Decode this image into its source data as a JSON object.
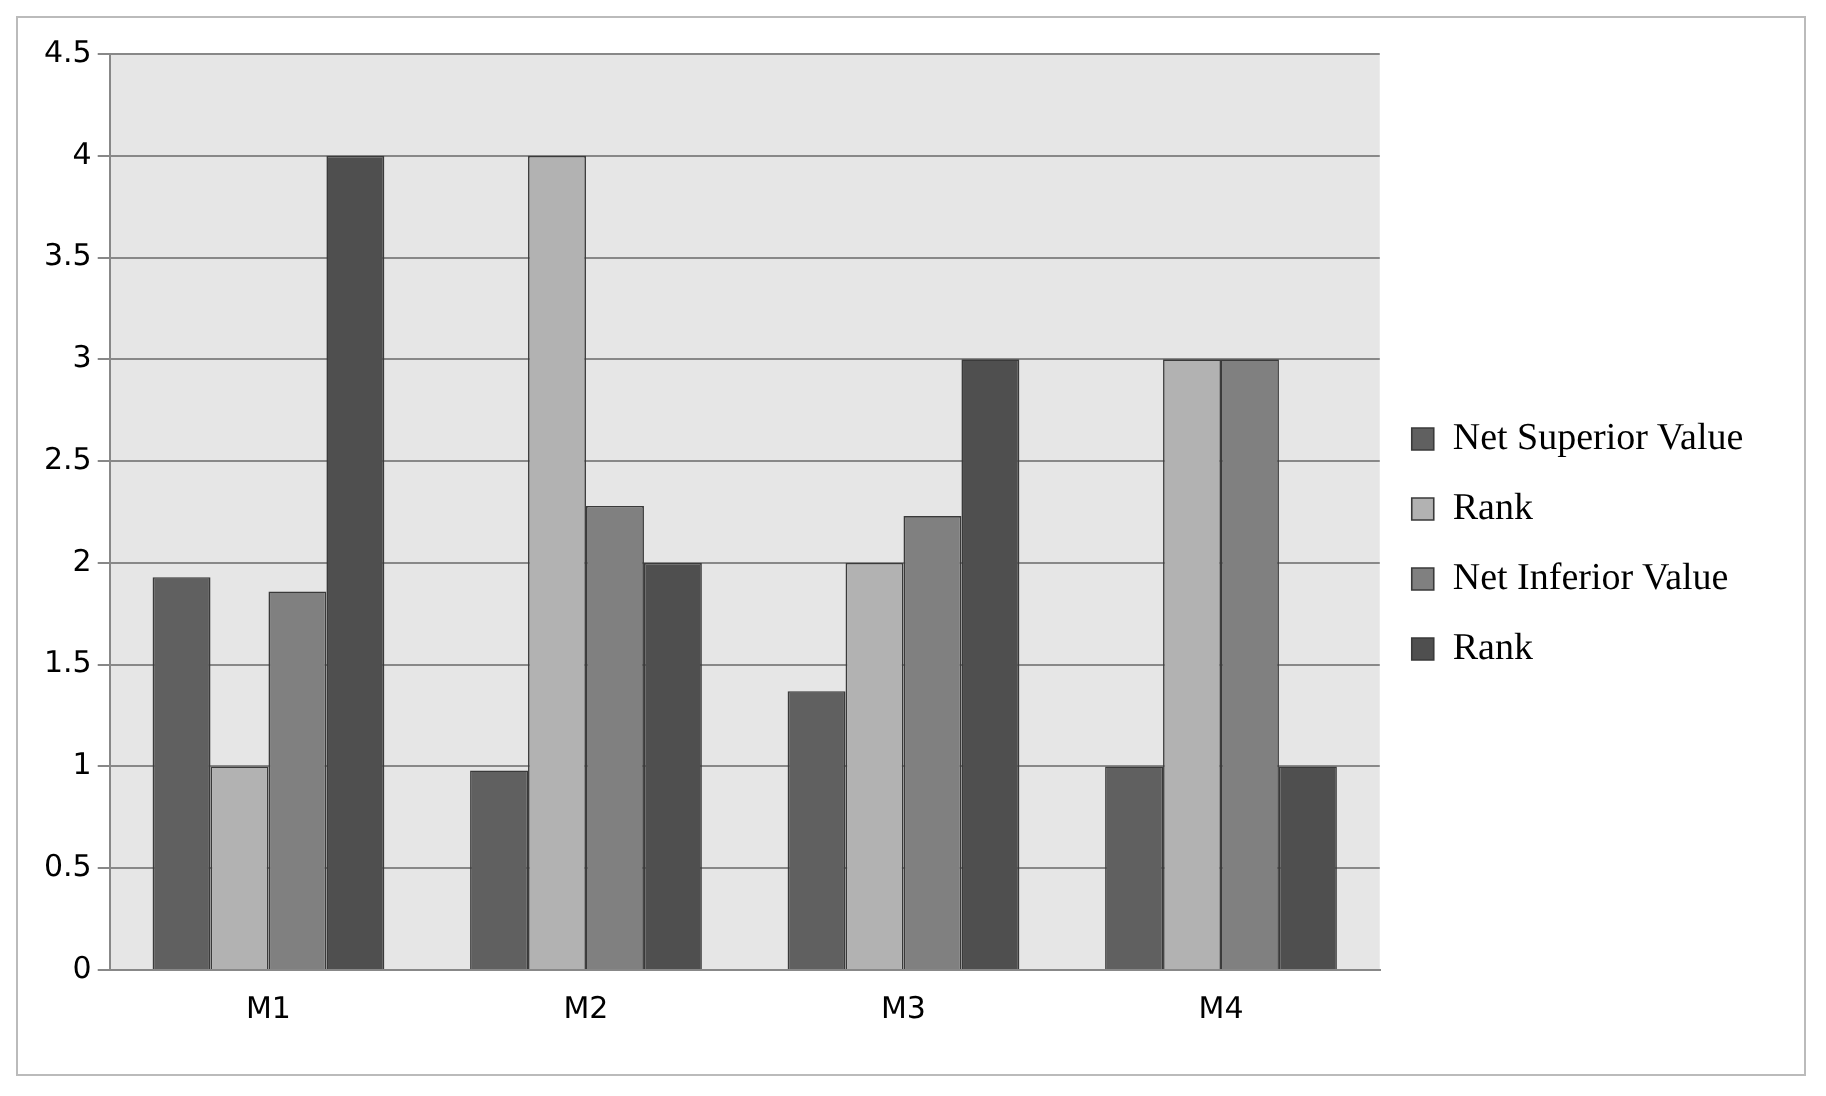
{
  "chart_data": {
    "type": "bar",
    "categories": [
      "M1",
      "M2",
      "M3",
      "M4"
    ],
    "series": [
      {
        "name": "Net Superior Value",
        "color": "#606060",
        "values": [
          1.93,
          0.98,
          1.37,
          1
        ]
      },
      {
        "name": "Rank",
        "color": "#b2b2b2",
        "values": [
          1,
          4,
          2,
          3
        ]
      },
      {
        "name": "Net Inferior Value",
        "color": "#808080",
        "values": [
          1.86,
          2.28,
          2.23,
          3
        ]
      },
      {
        "name": "Rank",
        "color": "#4f4f4f",
        "values": [
          4,
          2,
          3,
          1
        ]
      }
    ],
    "ylim": [
      0,
      4.5
    ],
    "yticks": [
      0,
      0.5,
      1,
      1.5,
      2,
      2.5,
      3,
      3.5,
      4,
      4.5
    ],
    "grid": "y",
    "legend": "right"
  }
}
